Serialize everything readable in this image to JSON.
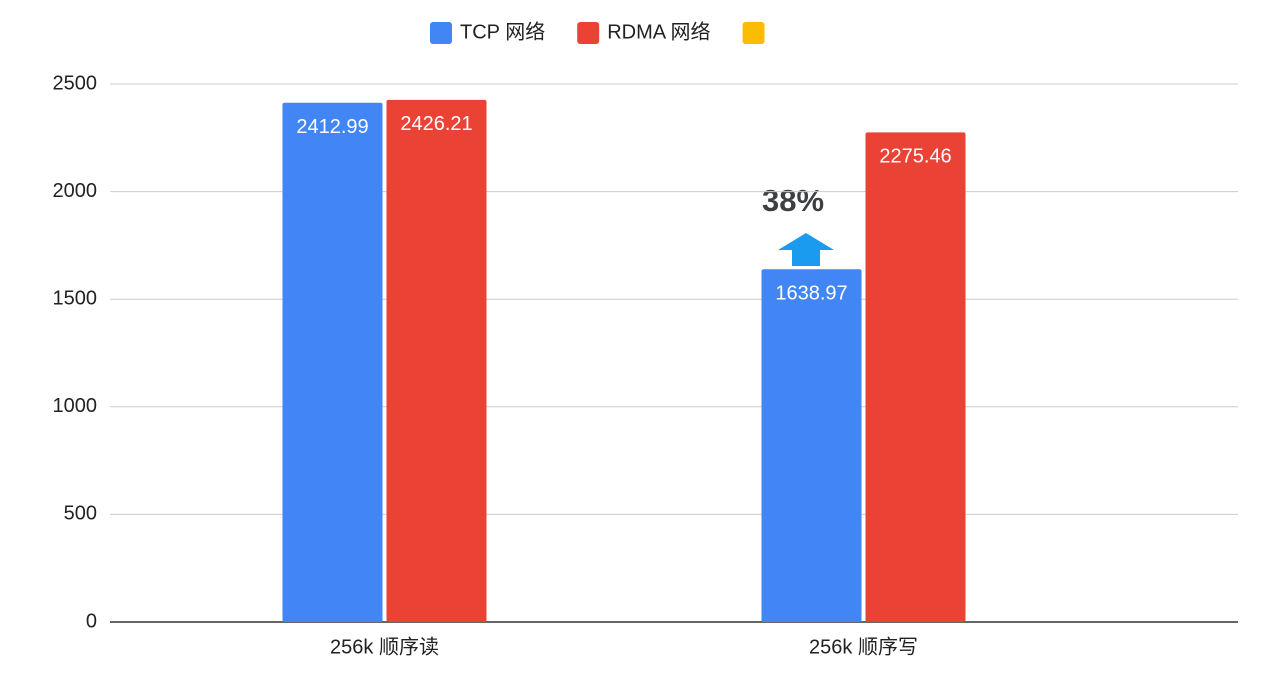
{
  "chart_data": {
    "type": "bar",
    "categories": [
      "256k 顺序读",
      "256k 顺序写"
    ],
    "series": [
      {
        "name": "TCP 网络",
        "color": "#4285f4",
        "values": [
          2412.99,
          1638.97
        ]
      },
      {
        "name": "RDMA 网络",
        "color": "#ea4335",
        "values": [
          2426.21,
          2275.46
        ]
      },
      {
        "color": "#fbbc04",
        "values": [
          null,
          null
        ]
      }
    ],
    "ylim": [
      0,
      2500
    ],
    "yticks": [
      0,
      500,
      1000,
      1500,
      2000,
      2500
    ],
    "grid": true,
    "legend": "top",
    "annotations": [
      {
        "text": "38%"
      }
    ]
  }
}
